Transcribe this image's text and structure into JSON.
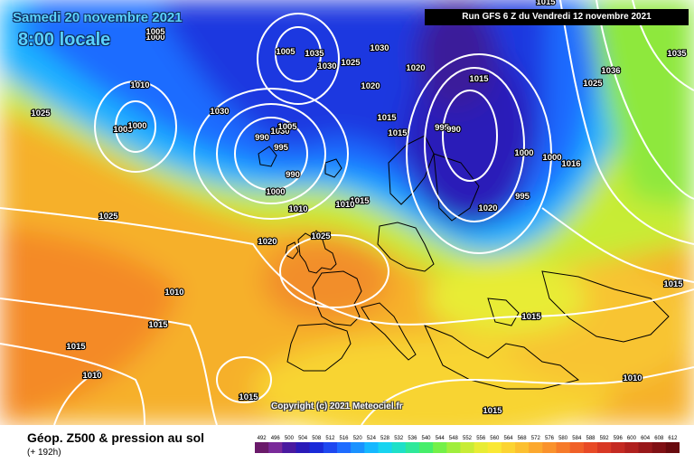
{
  "header": {
    "date": "Samedi 20 novembre 2021",
    "time": "8:00 locale",
    "run": "Run GFS 6 Z du Vendredi 12 novembre 2021"
  },
  "copyright": "Copyright (c) 2021 Meteociel.fr",
  "footer": {
    "title": "Géop. Z500 & pression au sol",
    "subtitle": "(+ 192h)"
  },
  "legend": {
    "values": [
      "492",
      "496",
      "500",
      "504",
      "508",
      "512",
      "516",
      "520",
      "524",
      "528",
      "532",
      "536",
      "540",
      "544",
      "548",
      "552",
      "556",
      "560",
      "564",
      "568",
      "572",
      "576",
      "580",
      "584",
      "588",
      "592",
      "596",
      "600",
      "604",
      "608",
      "612"
    ],
    "colors": [
      "#6a1a6a",
      "#7a2a9a",
      "#4a1aa0",
      "#2a1ab8",
      "#1a2ad8",
      "#1e48f0",
      "#1e6cff",
      "#1a92ff",
      "#16b8ff",
      "#18d4f0",
      "#1ee0c8",
      "#2ee89a",
      "#46ee6a",
      "#74f048",
      "#a0ee3c",
      "#c8ec36",
      "#e8ec34",
      "#fae834",
      "#fcd432",
      "#fcc030",
      "#fca82e",
      "#fa922c",
      "#f67a2a",
      "#f06028",
      "#e84a26",
      "#d83824",
      "#c42a22",
      "#b0201e",
      "#98181a",
      "#801014",
      "#680a0e"
    ]
  },
  "isobar_labels": [
    "1000",
    "1005",
    "1010",
    "1025",
    "1005",
    "1000",
    "1010",
    "1025",
    "1020",
    "1015",
    "1010",
    "1015",
    "1010",
    "1015",
    "1030",
    "1005",
    "1035",
    "1030",
    "1025",
    "1030",
    "1020",
    "1020",
    "1015",
    "1015",
    "995",
    "990",
    "1030",
    "1005",
    "990",
    "995",
    "990",
    "1000",
    "1010",
    "1025",
    "1015",
    "1020",
    "1000",
    "995",
    "1000",
    "1016",
    "1036",
    "1025",
    "1035",
    "1015",
    "1015",
    "1010",
    "1015",
    "1015",
    "1010",
    "1015"
  ]
}
